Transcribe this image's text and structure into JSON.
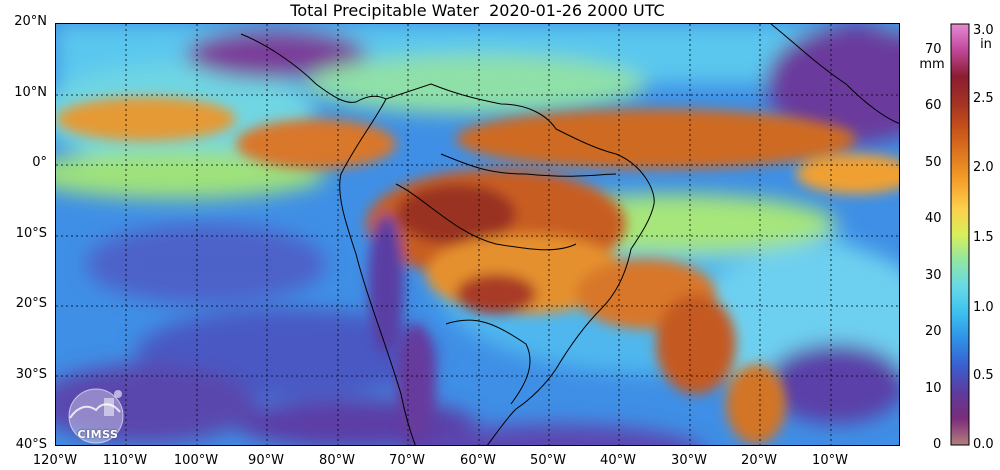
{
  "title": "Total Precipitable Water  2020-01-26 2000 UTC",
  "latitude_labels": [
    "20°N",
    "10°N",
    "0°",
    "10°S",
    "20°S",
    "30°S",
    "40°S"
  ],
  "longitude_labels": [
    "120°W",
    "110°W",
    "100°W",
    "90°W",
    "80°W",
    "70°W",
    "60°W",
    "50°W",
    "40°W",
    "30°W",
    "20°W",
    "10°W"
  ],
  "colorbar": {
    "mm_unit": "mm",
    "in_unit": "in",
    "mm_ticks": [
      "70",
      "60",
      "50",
      "40",
      "30",
      "20",
      "10",
      "0"
    ],
    "in_ticks": [
      "3.0",
      "2.5",
      "2.0",
      "1.5",
      "1.0",
      "0.5",
      "0.0"
    ],
    "colors": [
      "#b47f7f",
      "#7a2d7a",
      "#5d3b9c",
      "#3a5fd0",
      "#2f8fe8",
      "#3cc0ee",
      "#66d9e8",
      "#8fe6a5",
      "#d8ef5a",
      "#fdd04a",
      "#f5a12b",
      "#e07a1e",
      "#c9521a",
      "#a43224",
      "#8a1d30",
      "#c0479a",
      "#e58ad6"
    ]
  },
  "logo": {
    "text": "CIMSS"
  },
  "colors": {
    "ocean_base": "#4a7fe0",
    "high_moisture": "#b4441c",
    "dry": "#5a3da3"
  }
}
